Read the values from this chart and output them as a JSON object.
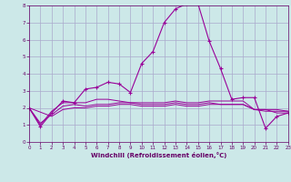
{
  "xlabel": "Windchill (Refroidissement éolien,°C)",
  "bg_color": "#cce8e8",
  "grid_color": "#aaaacc",
  "line_color": "#990099",
  "label_color": "#660066",
  "xlim": [
    0,
    23
  ],
  "ylim": [
    0,
    8
  ],
  "xticks": [
    0,
    1,
    2,
    3,
    4,
    5,
    6,
    7,
    8,
    9,
    10,
    11,
    12,
    13,
    14,
    15,
    16,
    17,
    18,
    19,
    20,
    21,
    22,
    23
  ],
  "yticks": [
    0,
    1,
    2,
    3,
    4,
    5,
    6,
    7,
    8
  ],
  "series1_x": [
    0,
    1,
    2,
    3,
    4,
    5,
    6,
    7,
    8,
    9,
    10,
    11,
    12,
    13,
    14,
    15,
    16,
    17,
    18,
    19,
    20,
    21,
    22,
    23
  ],
  "series1_y": [
    2.0,
    0.9,
    1.7,
    2.4,
    2.3,
    3.1,
    3.2,
    3.5,
    3.4,
    2.9,
    4.6,
    5.3,
    7.0,
    7.8,
    8.1,
    8.1,
    5.9,
    4.3,
    2.5,
    2.6,
    2.6,
    0.8,
    1.5,
    1.7
  ],
  "series2_x": [
    0,
    1,
    2,
    3,
    4,
    5,
    6,
    7,
    8,
    9,
    10,
    11,
    12,
    13,
    14,
    15,
    16,
    17,
    18,
    19,
    20,
    21,
    22,
    23
  ],
  "series2_y": [
    2.0,
    1.0,
    1.8,
    2.3,
    2.3,
    2.3,
    2.5,
    2.5,
    2.4,
    2.3,
    2.3,
    2.3,
    2.3,
    2.4,
    2.3,
    2.3,
    2.4,
    2.4,
    2.4,
    2.4,
    1.9,
    1.9,
    1.9,
    1.8
  ],
  "series3_x": [
    0,
    1,
    2,
    3,
    4,
    5,
    6,
    7,
    8,
    9,
    10,
    11,
    12,
    13,
    14,
    15,
    16,
    17,
    18,
    19,
    20,
    21,
    22,
    23
  ],
  "series3_y": [
    2.0,
    1.1,
    1.6,
    2.1,
    2.2,
    2.1,
    2.2,
    2.2,
    2.3,
    2.3,
    2.2,
    2.2,
    2.2,
    2.3,
    2.2,
    2.2,
    2.3,
    2.2,
    2.2,
    2.2,
    1.9,
    1.8,
    1.8,
    1.8
  ],
  "series4_x": [
    0,
    2,
    3,
    4,
    5,
    6,
    7,
    8,
    9,
    10,
    11,
    12,
    13,
    14,
    15,
    16,
    17,
    18,
    19,
    20,
    21,
    22,
    23
  ],
  "series4_y": [
    2.0,
    1.5,
    1.9,
    2.0,
    2.0,
    2.1,
    2.1,
    2.2,
    2.2,
    2.1,
    2.1,
    2.1,
    2.2,
    2.1,
    2.1,
    2.2,
    2.2,
    2.2,
    2.2,
    1.9,
    1.9,
    1.7,
    1.7
  ]
}
